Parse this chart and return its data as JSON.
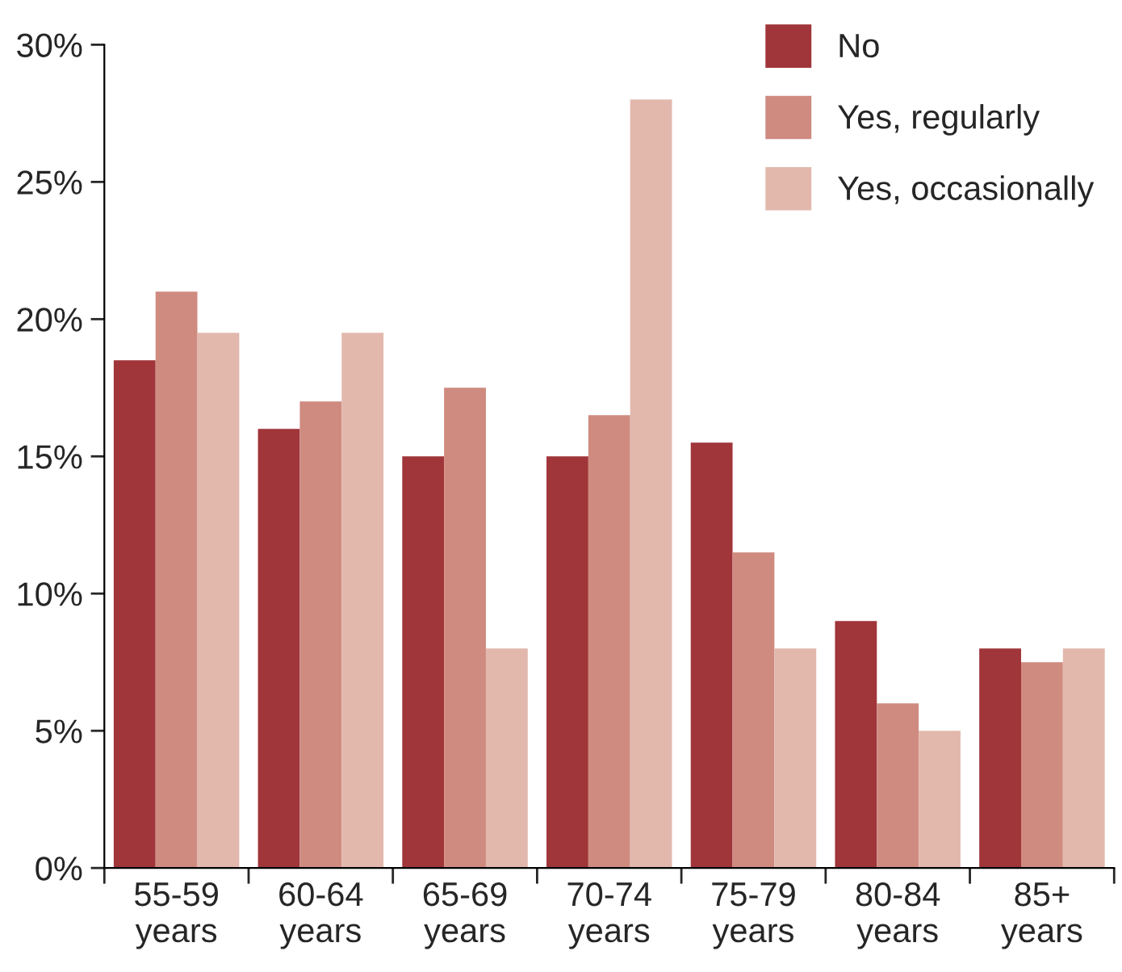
{
  "chart_data": {
    "type": "bar",
    "categories": [
      "55-59\nyears",
      "60-64\nyears",
      "65-69\nyears",
      "70-74\nyears",
      "75-79\nyears",
      "80-84\nyears",
      "85+\nyears"
    ],
    "series": [
      {
        "name": "No",
        "color": "#a0353a",
        "values": [
          18.5,
          16,
          15,
          15,
          15.5,
          9,
          8
        ]
      },
      {
        "name": "Yes, regularly",
        "color": "#cf8b80",
        "values": [
          21,
          17,
          17.5,
          16.5,
          11.5,
          6,
          7.5
        ]
      },
      {
        "name": "Yes, occasionally",
        "color": "#e2b8ad",
        "values": [
          19.5,
          19.5,
          8,
          28,
          8,
          5,
          8
        ]
      }
    ],
    "ylim": [
      0,
      30
    ],
    "yticks": [
      {
        "value": 0,
        "label": "0%"
      },
      {
        "value": 5,
        "label": "5%"
      },
      {
        "value": 10,
        "label": "10%"
      },
      {
        "value": 15,
        "label": "15%"
      },
      {
        "value": 20,
        "label": "20%"
      },
      {
        "value": 25,
        "label": "25%"
      },
      {
        "value": 30,
        "label": "30%"
      }
    ],
    "grid": false,
    "legend": "top right"
  }
}
